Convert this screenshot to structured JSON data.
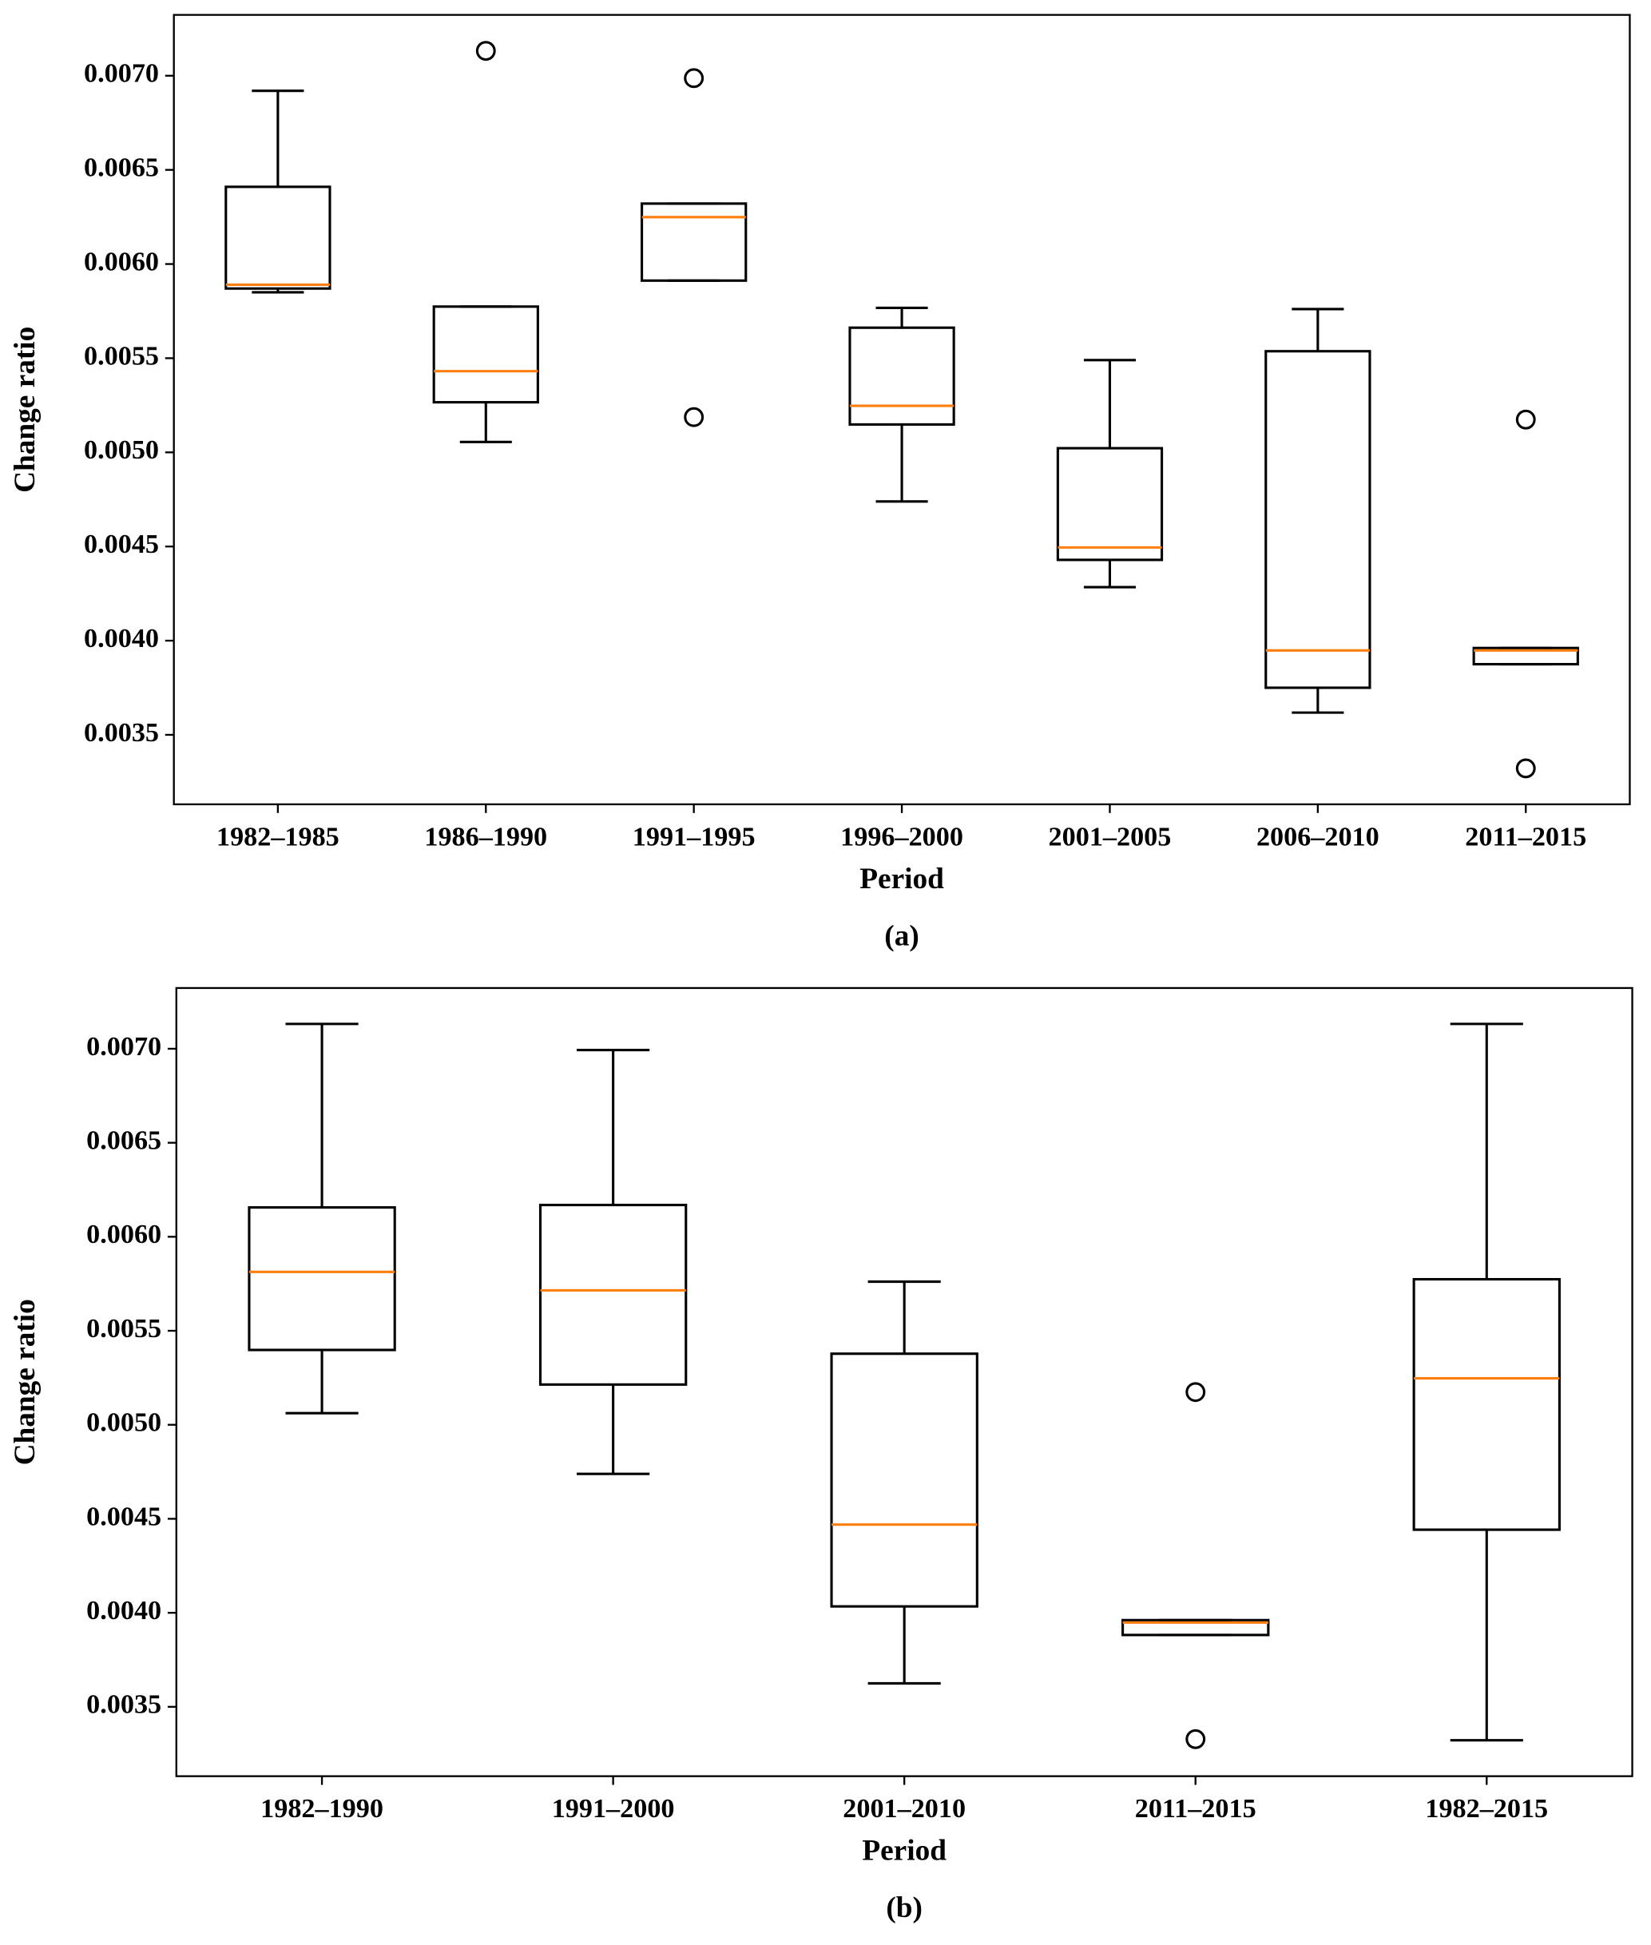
{
  "chart_data": [
    {
      "type": "box",
      "caption": "(a)",
      "xlabel": "Period",
      "ylabel": "Change ratio",
      "box_color": "#000000",
      "median_color": "#ff7f0e",
      "categories": [
        "1982–1985",
        "1986–1990",
        "1991–1995",
        "1996–2000",
        "2001–2005",
        "2006–2010",
        "2011–2015"
      ],
      "boxes": [
        {
          "whisker_low": 0.00585,
          "q1": 0.00587,
          "median": 0.00589,
          "q3": 0.00641,
          "whisker_high": 0.00692,
          "outliers": []
        },
        {
          "whisker_low": 0.005055,
          "q1": 0.005266,
          "median": 0.005431,
          "q3": 0.005774,
          "whisker_high": 0.005774,
          "outliers": [
            0.007132
          ]
        },
        {
          "whisker_low": 0.005912,
          "q1": 0.005912,
          "median": 0.006249,
          "q3": 0.006321,
          "whisker_high": 0.006321,
          "outliers": [
            0.006987,
            0.005187
          ]
        },
        {
          "whisker_low": 0.004739,
          "q1": 0.005148,
          "median": 0.005247,
          "q3": 0.005662,
          "whisker_high": 0.005767,
          "outliers": []
        },
        {
          "whisker_low": 0.004284,
          "q1": 0.004429,
          "median": 0.004495,
          "q3": 0.005022,
          "whisker_high": 0.00549,
          "outliers": []
        },
        {
          "whisker_low": 0.003618,
          "q1": 0.00375,
          "median": 0.003948,
          "q3": 0.005537,
          "whisker_high": 0.005761,
          "outliers": []
        },
        {
          "whisker_low": 0.003875,
          "q1": 0.003875,
          "median": 0.003948,
          "q3": 0.003961,
          "whisker_high": 0.003961,
          "outliers": [
            0.005174,
            0.003322
          ]
        }
      ],
      "ylim": [
        0.003131,
        0.007323
      ],
      "yticks": [
        0.0035,
        {
          "value": 0.004,
          "label": "0.0040"
        },
        0.0045,
        {
          "value": 0.005,
          "label": "0.0050"
        },
        0.0055,
        {
          "value": 0.006,
          "label": "0.0060"
        },
        0.0065,
        {
          "value": 0.007,
          "label": "0.0070"
        }
      ]
    },
    {
      "type": "box",
      "caption": "(b)",
      "xlabel": "Period",
      "ylabel": "Change ratio",
      "box_color": "#000000",
      "median_color": "#ff7f0e",
      "categories": [
        "1982–1990",
        "1991–2000",
        "2001–2010",
        "2011–2015",
        "1982–2015"
      ],
      "boxes": [
        {
          "whisker_low": 0.005062,
          "q1": 0.005398,
          "median": 0.005813,
          "q3": 0.006156,
          "whisker_high": 0.007132,
          "outliers": []
        },
        {
          "whisker_low": 0.004739,
          "q1": 0.005214,
          "median": 0.005715,
          "q3": 0.006169,
          "whisker_high": 0.006993,
          "outliers": []
        },
        {
          "whisker_low": 0.003625,
          "q1": 0.004034,
          "median": 0.004469,
          "q3": 0.005378,
          "whisker_high": 0.005761,
          "outliers": []
        },
        {
          "whisker_low": 0.003882,
          "q1": 0.003882,
          "median": 0.003948,
          "q3": 0.003961,
          "whisker_high": 0.003961,
          "outliers": [
            0.005174,
            0.003328
          ]
        },
        {
          "whisker_low": 0.003322,
          "q1": 0.004442,
          "median": 0.005247,
          "q3": 0.005774,
          "whisker_high": 0.007132,
          "outliers": []
        }
      ],
      "ylim": [
        0.003131,
        0.007323
      ],
      "yticks": [
        0.0035,
        {
          "value": 0.004,
          "label": "0.0040"
        },
        0.0045,
        {
          "value": 0.005,
          "label": "0.0050"
        },
        0.0055,
        {
          "value": 0.006,
          "label": "0.0060"
        },
        0.0065,
        {
          "value": 0.007,
          "label": "0.0070"
        }
      ]
    }
  ]
}
